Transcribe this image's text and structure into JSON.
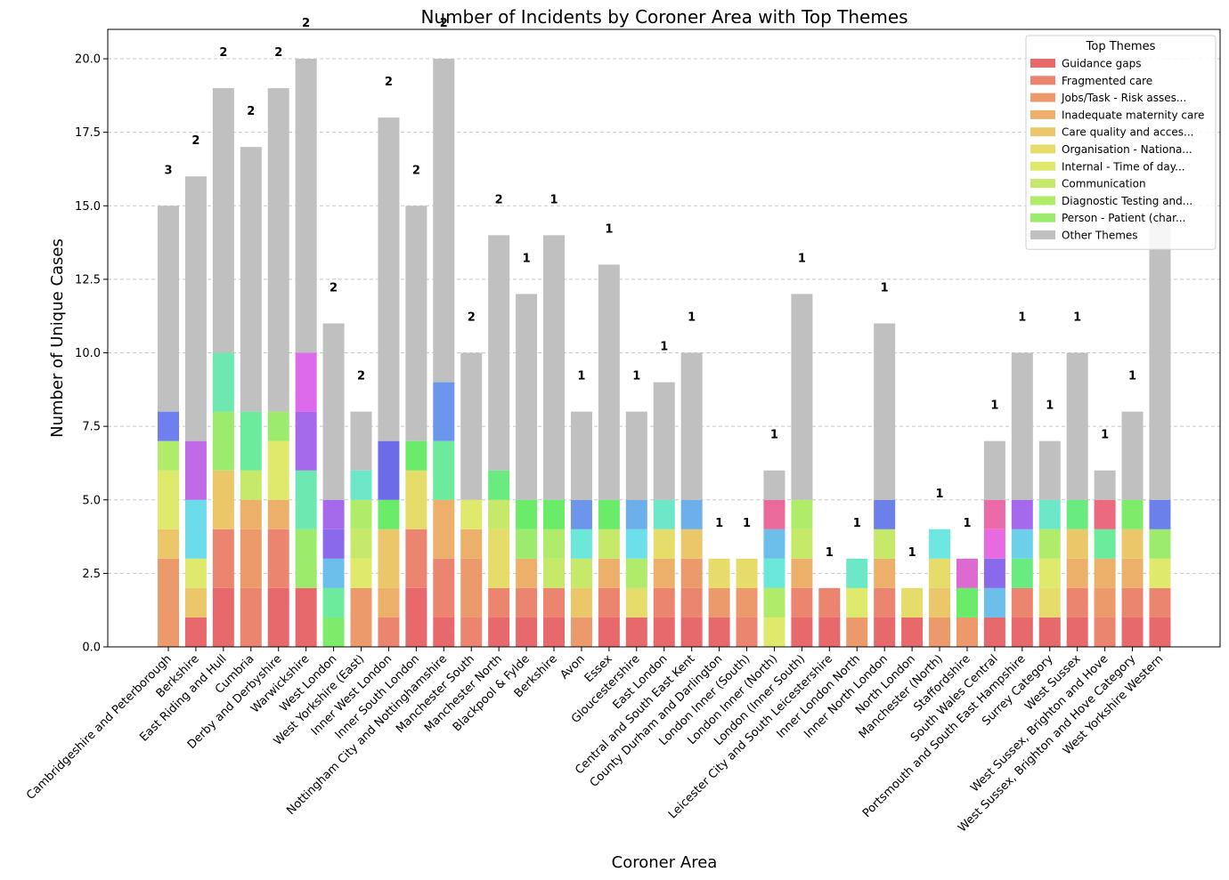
{
  "chart_data": {
    "type": "bar",
    "stacked": true,
    "title": "Number of Incidents by Coroner Area with Top Themes",
    "xlabel": "Coroner Area",
    "ylabel": "Number of Unique Cases",
    "ylim": [
      0,
      21
    ],
    "yticks": [
      "0.0",
      "2.5",
      "5.0",
      "7.5",
      "10.0",
      "12.5",
      "15.0",
      "17.5",
      "20.0"
    ],
    "grid": "horizontal dashed",
    "legend": {
      "title": "Top Themes",
      "placement": "top-right",
      "entries": [
        {
          "name": "Guidance gaps",
          "color": "#e8696b"
        },
        {
          "name": "Fragmented care",
          "color": "#ec8570"
        },
        {
          "name": "Jobs/Task - Risk asses...",
          "color": "#ec9a6b"
        },
        {
          "name": "Inadequate maternity care",
          "color": "#ecb06a"
        },
        {
          "name": "Care quality and acces...",
          "color": "#ecc76a"
        },
        {
          "name": "Organisation - Nationa...",
          "color": "#e5dc6a"
        },
        {
          "name": "Internal - Time of day...",
          "color": "#dfe96c"
        },
        {
          "name": "Communication",
          "color": "#c6e96a"
        },
        {
          "name": "Diagnostic Testing and...",
          "color": "#b0eb6a"
        },
        {
          "name": "Person - Patient (char...",
          "color": "#9ceb6c"
        },
        {
          "name": "Other Themes",
          "color": "#c0c0c0"
        }
      ]
    },
    "categories": [
      "Cambridgeshire and Peterborough",
      "Berkshire",
      "East Riding and Hull",
      "Cumbria",
      "Derby and Derbyshire",
      "Warwickshire",
      "West London",
      "West Yorkshire (East)",
      "Inner West London",
      "Inner South London",
      "Nottingham City and Nottinghamshire",
      "Manchester South",
      "Manchester North",
      "Blackpool & Fylde",
      "Berkshire",
      "Avon",
      "Essex",
      "Gloucestershire",
      "East London",
      "Central and South East Kent",
      "County Durham and Darlington",
      "London Inner (South)",
      "London Inner (North)",
      "London (Inner South)",
      "Leicester City and South Leicestershire",
      "Inner London North",
      "Inner North London",
      "North London",
      "Manchester (North)",
      "Staffordshire",
      "South Wales Central",
      "Portsmouth and South East Hampshire",
      "Surrey Category",
      "West Sussex",
      "West Sussex, Brighton and Hove",
      "West Sussex, Brighton and Hove Category",
      "West Yorkshire Western"
    ],
    "totals": [
      15,
      16,
      19,
      17,
      19,
      20,
      11,
      8,
      18,
      15,
      20,
      10,
      14,
      12,
      14,
      8,
      13,
      8,
      9,
      10,
      3,
      3,
      6,
      12,
      2,
      3,
      11,
      2,
      4,
      3,
      7,
      10,
      7,
      10,
      6,
      8,
      14.5
    ],
    "labels": [
      "3",
      "2",
      "2",
      "2",
      "2",
      "2",
      "2",
      "2",
      "2",
      "2",
      "2",
      "2",
      "2",
      "1",
      "1",
      "1",
      "1",
      "1",
      "1",
      "1",
      "1",
      "1",
      "1",
      "1",
      "1",
      "1",
      "1",
      "1",
      "1",
      "1",
      "1",
      "1",
      "1",
      "1",
      "1",
      "1",
      ""
    ],
    "segments": [
      [
        {
          "v": 3,
          "c": "#ec9a6b"
        },
        {
          "v": 1,
          "c": "#ecc76a"
        },
        {
          "v": 2,
          "c": "#dfe96c"
        },
        {
          "v": 1,
          "c": "#b0eb6a"
        },
        {
          "v": 1,
          "c": "#6f7ff0"
        },
        {
          "v": 7,
          "c": "#c0c0c0"
        }
      ],
      [
        {
          "v": 1,
          "c": "#e8696b"
        },
        {
          "v": 1,
          "c": "#ecc76a"
        },
        {
          "v": 1,
          "c": "#dfe96c"
        },
        {
          "v": 2,
          "c": "#6cdbea"
        },
        {
          "v": 2,
          "c": "#c06ae8"
        },
        {
          "v": 9,
          "c": "#c0c0c0"
        }
      ],
      [
        {
          "v": 2,
          "c": "#e8696b"
        },
        {
          "v": 2,
          "c": "#ec8570"
        },
        {
          "v": 2,
          "c": "#ecc76a"
        },
        {
          "v": 2,
          "c": "#9ceb6c"
        },
        {
          "v": 2,
          "c": "#6ce8b0"
        },
        {
          "v": 9,
          "c": "#c0c0c0"
        }
      ],
      [
        {
          "v": 2,
          "c": "#ec8570"
        },
        {
          "v": 2,
          "c": "#ec9a6b"
        },
        {
          "v": 1,
          "c": "#ecb06a"
        },
        {
          "v": 1,
          "c": "#c6e96a"
        },
        {
          "v": 2,
          "c": "#6ceb9c"
        },
        {
          "v": 9,
          "c": "#c0c0c0"
        }
      ],
      [
        {
          "v": 2,
          "c": "#e8696b"
        },
        {
          "v": 2,
          "c": "#ec8570"
        },
        {
          "v": 1,
          "c": "#ecb06a"
        },
        {
          "v": 2,
          "c": "#dfe96c"
        },
        {
          "v": 1,
          "c": "#9ceb6c"
        },
        {
          "v": 11,
          "c": "#c0c0c0"
        }
      ],
      [
        {
          "v": 2,
          "c": "#e8696b"
        },
        {
          "v": 2,
          "c": "#9ceb6c"
        },
        {
          "v": 2,
          "c": "#6ce8b0"
        },
        {
          "v": 2,
          "c": "#a56aeb"
        },
        {
          "v": 2,
          "c": "#dd6aeb"
        },
        {
          "v": 10,
          "c": "#c0c0c0"
        }
      ],
      [
        {
          "v": 1,
          "c": "#7feb6a"
        },
        {
          "v": 1,
          "c": "#6ceb9c"
        },
        {
          "v": 1,
          "c": "#6cbfeb"
        },
        {
          "v": 1,
          "c": "#8a6aeb"
        },
        {
          "v": 1,
          "c": "#a56aeb"
        },
        {
          "v": 6,
          "c": "#c0c0c0"
        }
      ],
      [
        {
          "v": 2,
          "c": "#ec9a6b"
        },
        {
          "v": 1,
          "c": "#dfe96c"
        },
        {
          "v": 1,
          "c": "#c6e96a"
        },
        {
          "v": 1,
          "c": "#b0eb6a"
        },
        {
          "v": 1,
          "c": "#6ce8c8"
        },
        {
          "v": 2,
          "c": "#c0c0c0"
        }
      ],
      [
        {
          "v": 1,
          "c": "#ec8570"
        },
        {
          "v": 1,
          "c": "#ecb06a"
        },
        {
          "v": 2,
          "c": "#ecc76a"
        },
        {
          "v": 1,
          "c": "#6aeb6a"
        },
        {
          "v": 2,
          "c": "#6c6ce8"
        },
        {
          "v": 11,
          "c": "#c0c0c0"
        }
      ],
      [
        {
          "v": 2,
          "c": "#e8696b"
        },
        {
          "v": 2,
          "c": "#ec8570"
        },
        {
          "v": 2,
          "c": "#e5dc6a"
        },
        {
          "v": 1,
          "c": "#6aeb6a"
        },
        {
          "v": 8,
          "c": "#c0c0c0"
        }
      ],
      [
        {
          "v": 1,
          "c": "#e8696b"
        },
        {
          "v": 2,
          "c": "#ec8570"
        },
        {
          "v": 2,
          "c": "#ecb06a"
        },
        {
          "v": 2,
          "c": "#6ceb9c"
        },
        {
          "v": 2,
          "c": "#6c96eb"
        },
        {
          "v": 11,
          "c": "#c0c0c0"
        }
      ],
      [
        {
          "v": 1,
          "c": "#ec8570"
        },
        {
          "v": 2,
          "c": "#ec9a6b"
        },
        {
          "v": 1,
          "c": "#ecb06a"
        },
        {
          "v": 1,
          "c": "#dfe96c"
        },
        {
          "v": 5,
          "c": "#c0c0c0"
        }
      ],
      [
        {
          "v": 1,
          "c": "#e8696b"
        },
        {
          "v": 1,
          "c": "#ec8570"
        },
        {
          "v": 2,
          "c": "#e5dc6a"
        },
        {
          "v": 1,
          "c": "#c6e96a"
        },
        {
          "v": 1,
          "c": "#6aeb80"
        },
        {
          "v": 8,
          "c": "#c0c0c0"
        }
      ],
      [
        {
          "v": 1,
          "c": "#e8696b"
        },
        {
          "v": 1,
          "c": "#ec8570"
        },
        {
          "v": 1,
          "c": "#ecb06a"
        },
        {
          "v": 1,
          "c": "#9ceb6c"
        },
        {
          "v": 1,
          "c": "#6aeb6a"
        },
        {
          "v": 7,
          "c": "#c0c0c0"
        }
      ],
      [
        {
          "v": 1,
          "c": "#e8696b"
        },
        {
          "v": 1,
          "c": "#ec8570"
        },
        {
          "v": 1,
          "c": "#c6e96a"
        },
        {
          "v": 1,
          "c": "#b0eb6a"
        },
        {
          "v": 1,
          "c": "#6aeb6a"
        },
        {
          "v": 9,
          "c": "#c0c0c0"
        }
      ],
      [
        {
          "v": 1,
          "c": "#ec9a6b"
        },
        {
          "v": 1,
          "c": "#ecc76a"
        },
        {
          "v": 1,
          "c": "#c6e96a"
        },
        {
          "v": 1,
          "c": "#6ce8d8"
        },
        {
          "v": 1,
          "c": "#6c96eb"
        },
        {
          "v": 3,
          "c": "#c0c0c0"
        }
      ],
      [
        {
          "v": 1,
          "c": "#e8696b"
        },
        {
          "v": 1,
          "c": "#ec8570"
        },
        {
          "v": 1,
          "c": "#ecb06a"
        },
        {
          "v": 1,
          "c": "#c6e96a"
        },
        {
          "v": 1,
          "c": "#6aeb6a"
        },
        {
          "v": 8,
          "c": "#c0c0c0"
        }
      ],
      [
        {
          "v": 1,
          "c": "#e8696b"
        },
        {
          "v": 1,
          "c": "#e5dc6a"
        },
        {
          "v": 1,
          "c": "#b0eb6a"
        },
        {
          "v": 1,
          "c": "#6ce0ea"
        },
        {
          "v": 1,
          "c": "#6cb0eb"
        },
        {
          "v": 3,
          "c": "#c0c0c0"
        }
      ],
      [
        {
          "v": 1,
          "c": "#e8696b"
        },
        {
          "v": 1,
          "c": "#ec8570"
        },
        {
          "v": 1,
          "c": "#ecb06a"
        },
        {
          "v": 1,
          "c": "#e5dc6a"
        },
        {
          "v": 1,
          "c": "#6ce8c8"
        },
        {
          "v": 4,
          "c": "#c0c0c0"
        }
      ],
      [
        {
          "v": 1,
          "c": "#e8696b"
        },
        {
          "v": 1,
          "c": "#ec8570"
        },
        {
          "v": 1,
          "c": "#ec9a6b"
        },
        {
          "v": 1,
          "c": "#ecc76a"
        },
        {
          "v": 1,
          "c": "#6cb0eb"
        },
        {
          "v": 5,
          "c": "#c0c0c0"
        }
      ],
      [
        {
          "v": 1,
          "c": "#e8696b"
        },
        {
          "v": 1,
          "c": "#ec9a6b"
        },
        {
          "v": 1,
          "c": "#e5dc6a"
        }
      ],
      [
        {
          "v": 1,
          "c": "#ec8570"
        },
        {
          "v": 1,
          "c": "#ec9a6b"
        },
        {
          "v": 1,
          "c": "#e5dc6a"
        }
      ],
      [
        {
          "v": 1,
          "c": "#dfe96c"
        },
        {
          "v": 1,
          "c": "#b0eb6a"
        },
        {
          "v": 1,
          "c": "#6ce8d8"
        },
        {
          "v": 1,
          "c": "#6cbfeb"
        },
        {
          "v": 1,
          "c": "#eb6a9c"
        },
        {
          "v": 1,
          "c": "#c0c0c0"
        }
      ],
      [
        {
          "v": 1,
          "c": "#e8696b"
        },
        {
          "v": 1,
          "c": "#ec8570"
        },
        {
          "v": 1,
          "c": "#ecb06a"
        },
        {
          "v": 1,
          "c": "#c6e96a"
        },
        {
          "v": 1,
          "c": "#b0eb6a"
        },
        {
          "v": 7,
          "c": "#c0c0c0"
        }
      ],
      [
        {
          "v": 1,
          "c": "#e8696b"
        },
        {
          "v": 1,
          "c": "#ec8570"
        }
      ],
      [
        {
          "v": 1,
          "c": "#ec9a6b"
        },
        {
          "v": 1,
          "c": "#dfe96c"
        },
        {
          "v": 1,
          "c": "#6ce8c8"
        }
      ],
      [
        {
          "v": 1,
          "c": "#e8696b"
        },
        {
          "v": 1,
          "c": "#ec8570"
        },
        {
          "v": 1,
          "c": "#ecb06a"
        },
        {
          "v": 1,
          "c": "#c6e96a"
        },
        {
          "v": 1,
          "c": "#6c80eb"
        },
        {
          "v": 6,
          "c": "#c0c0c0"
        }
      ],
      [
        {
          "v": 1,
          "c": "#e8696b"
        },
        {
          "v": 1,
          "c": "#e5dc6a"
        }
      ],
      [
        {
          "v": 1,
          "c": "#ec9a6b"
        },
        {
          "v": 1,
          "c": "#ecc76a"
        },
        {
          "v": 1,
          "c": "#e5dc6a"
        },
        {
          "v": 1,
          "c": "#6ce8e0"
        }
      ],
      [
        {
          "v": 1,
          "c": "#ec9a6b"
        },
        {
          "v": 1,
          "c": "#6aeb6a"
        },
        {
          "v": 1,
          "c": "#dd6ad0"
        }
      ],
      [
        {
          "v": 1,
          "c": "#e8696b"
        },
        {
          "v": 1,
          "c": "#6cbfeb"
        },
        {
          "v": 1,
          "c": "#8a6aeb"
        },
        {
          "v": 1,
          "c": "#e86ae0"
        },
        {
          "v": 1,
          "c": "#eb6aa8"
        },
        {
          "v": 2,
          "c": "#c0c0c0"
        }
      ],
      [
        {
          "v": 1,
          "c": "#e8696b"
        },
        {
          "v": 1,
          "c": "#ec8570"
        },
        {
          "v": 1,
          "c": "#6aeb80"
        },
        {
          "v": 1,
          "c": "#6cd0eb"
        },
        {
          "v": 1,
          "c": "#a56aeb"
        },
        {
          "v": 5,
          "c": "#c0c0c0"
        }
      ],
      [
        {
          "v": 1,
          "c": "#e8696b"
        },
        {
          "v": 1,
          "c": "#e5dc6a"
        },
        {
          "v": 1,
          "c": "#dfe96c"
        },
        {
          "v": 1,
          "c": "#b0eb6a"
        },
        {
          "v": 1,
          "c": "#6ce8c8"
        },
        {
          "v": 2,
          "c": "#c0c0c0"
        }
      ],
      [
        {
          "v": 1,
          "c": "#e8696b"
        },
        {
          "v": 1,
          "c": "#ec8570"
        },
        {
          "v": 1,
          "c": "#ecb06a"
        },
        {
          "v": 1,
          "c": "#ecc76a"
        },
        {
          "v": 1,
          "c": "#6aeb80"
        },
        {
          "v": 5,
          "c": "#c0c0c0"
        }
      ],
      [
        {
          "v": 1,
          "c": "#ec8570"
        },
        {
          "v": 1,
          "c": "#ec9a6b"
        },
        {
          "v": 1,
          "c": "#ecb06a"
        },
        {
          "v": 1,
          "c": "#6ceb9c"
        },
        {
          "v": 1,
          "c": "#eb6a80"
        },
        {
          "v": 1,
          "c": "#c0c0c0"
        }
      ],
      [
        {
          "v": 1,
          "c": "#e8696b"
        },
        {
          "v": 1,
          "c": "#ec8570"
        },
        {
          "v": 1,
          "c": "#ecb06a"
        },
        {
          "v": 1,
          "c": "#ecc76a"
        },
        {
          "v": 1,
          "c": "#7feb6a"
        },
        {
          "v": 3,
          "c": "#c0c0c0"
        }
      ],
      [
        {
          "v": 1,
          "c": "#e8696b"
        },
        {
          "v": 1,
          "c": "#ec8570"
        },
        {
          "v": 1,
          "c": "#dfe96c"
        },
        {
          "v": 1,
          "c": "#9ceb6c"
        },
        {
          "v": 1,
          "c": "#6c80eb"
        },
        {
          "v": 9.5,
          "c": "#c0c0c0"
        }
      ]
    ]
  }
}
